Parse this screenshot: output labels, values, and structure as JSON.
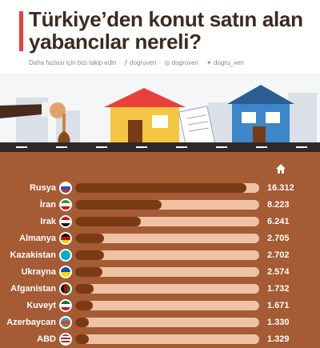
{
  "title": "Türkiye’den konut satın alan yabancılar nereli?",
  "social": {
    "follow_text": "Daha fazlası için bizi takip edin",
    "facebook": "dogruveri",
    "instagram": "dogruveri",
    "twitter": "dogru_veri"
  },
  "icons": {
    "header": "house-icon",
    "facebook": "facebook-icon",
    "instagram": "instagram-icon",
    "twitter": "twitter-icon"
  },
  "colors": {
    "accent": "#e8413a",
    "panel": "#a55b33",
    "bar_fill": "#7a3a16",
    "bar_track": "#f0c2a4"
  },
  "chart_data": {
    "type": "bar",
    "orientation": "horizontal",
    "categories": [
      "Rusya",
      "İran",
      "Irak",
      "Almanya",
      "Kazakistan",
      "Ukrayna",
      "Afganistan",
      "Kuveyt",
      "Azerbaycan",
      "ABD"
    ],
    "values": [
      16312,
      8223,
      6241,
      2705,
      2702,
      2574,
      1732,
      1671,
      1330,
      1329
    ],
    "value_labels": [
      "16.312",
      "8.223",
      "6.241",
      "2.705",
      "2.702",
      "2.574",
      "1.732",
      "1.671",
      "1.330",
      "1.329"
    ],
    "xlim": [
      0,
      17500
    ],
    "grid": false
  }
}
